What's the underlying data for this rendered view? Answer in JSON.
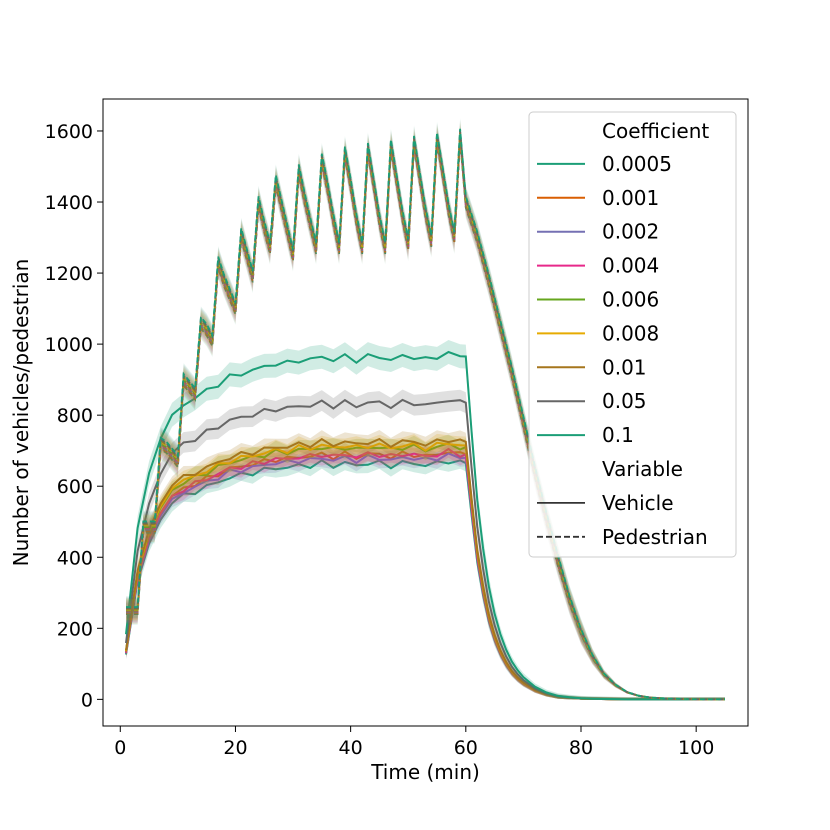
{
  "chart_data": {
    "type": "line",
    "xlabel": "Time (min)",
    "ylabel": "Number of vehicles/pedestrian",
    "xlim": [
      -3,
      109
    ],
    "ylim": [
      -75,
      1690
    ],
    "xticks": [
      0,
      20,
      40,
      60,
      80,
      100
    ],
    "yticks": [
      0,
      200,
      400,
      600,
      800,
      1000,
      1200,
      1400,
      1600
    ],
    "grid": false,
    "legend_position": "top-right",
    "legend": {
      "hue_title": "Coefficient",
      "style_title": "Variable",
      "style_entries": [
        {
          "label": "Vehicle",
          "dash": "solid"
        },
        {
          "label": "Pedestrian",
          "dash": "dashed"
        }
      ]
    },
    "coefficients": [
      {
        "name": "0.0005",
        "color": "#1b9e77",
        "vehicle_plateau": 665
      },
      {
        "name": "0.001",
        "color": "#d95f02",
        "vehicle_plateau": 690
      },
      {
        "name": "0.002",
        "color": "#7570b3",
        "vehicle_plateau": 680
      },
      {
        "name": "0.004",
        "color": "#e7298a",
        "vehicle_plateau": 690
      },
      {
        "name": "0.006",
        "color": "#66a61e",
        "vehicle_plateau": 710
      },
      {
        "name": "0.008",
        "color": "#e6ab02",
        "vehicle_plateau": 715
      },
      {
        "name": "0.01",
        "color": "#a6761d",
        "vehicle_plateau": 725
      },
      {
        "name": "0.05",
        "color": "#666666",
        "vehicle_plateau": 835
      },
      {
        "name": "0.1",
        "color": "#1b9e77",
        "vehicle_plateau": 965
      }
    ],
    "pedestrian": {
      "x": [
        1,
        2,
        3,
        4,
        5,
        6,
        7,
        8,
        9,
        10,
        11,
        12,
        13,
        14,
        15,
        16,
        17,
        18,
        19,
        20,
        21,
        22,
        23,
        24,
        25,
        26,
        27,
        28,
        29,
        30,
        31,
        32,
        33,
        34,
        35,
        36,
        37,
        38,
        39,
        40,
        41,
        42,
        43,
        44,
        45,
        46,
        47,
        48,
        49,
        50,
        51,
        52,
        53,
        54,
        55,
        56,
        57,
        58,
        59,
        60,
        62,
        64,
        66,
        68,
        70,
        72,
        74,
        76,
        78,
        80,
        82,
        84,
        86,
        88,
        90,
        92,
        95,
        98,
        101,
        105
      ],
      "y": [
        250,
        250,
        250,
        485,
        485,
        485,
        720,
        710,
        690,
        670,
        900,
        880,
        860,
        1060,
        1040,
        1010,
        1230,
        1180,
        1140,
        1100,
        1310,
        1250,
        1190,
        1400,
        1330,
        1270,
        1460,
        1390,
        1320,
        1250,
        1490,
        1410,
        1340,
        1270,
        1520,
        1440,
        1350,
        1270,
        1540,
        1450,
        1350,
        1270,
        1550,
        1450,
        1350,
        1270,
        1560,
        1460,
        1360,
        1280,
        1570,
        1470,
        1370,
        1290,
        1580,
        1480,
        1380,
        1300,
        1590,
        1400,
        1300,
        1180,
        1050,
        920,
        780,
        640,
        510,
        390,
        280,
        190,
        120,
        70,
        40,
        20,
        10,
        5,
        2,
        1,
        0,
        0
      ],
      "spread": 30
    },
    "vehicle_shape": {
      "x": [
        1,
        3,
        5,
        7,
        9,
        11,
        13,
        15,
        17,
        19,
        21,
        23,
        25,
        27,
        29,
        31,
        33,
        35,
        37,
        39,
        41,
        43,
        45,
        47,
        49,
        51,
        53,
        55,
        57,
        59,
        60,
        61,
        62,
        63,
        64,
        65,
        66,
        67,
        68,
        69,
        70,
        72,
        74,
        76,
        78,
        80,
        82,
        85,
        88,
        92,
        96,
        100,
        105
      ],
      "frac": [
        0.19,
        0.5,
        0.66,
        0.76,
        0.83,
        0.86,
        0.88,
        0.9,
        0.92,
        0.94,
        0.95,
        0.96,
        0.97,
        0.98,
        0.98,
        0.99,
        0.99,
        1.0,
        0.99,
        1.0,
        0.99,
        1.0,
        1.0,
        0.99,
        1.0,
        1.0,
        0.99,
        1.0,
        1.01,
        1.0,
        1.0,
        0.78,
        0.58,
        0.44,
        0.33,
        0.25,
        0.19,
        0.145,
        0.11,
        0.085,
        0.065,
        0.037,
        0.02,
        0.01,
        0.006,
        0.003,
        0.002,
        0.001,
        0.0,
        0.0,
        0.0,
        0.0,
        0.0
      ]
    }
  }
}
